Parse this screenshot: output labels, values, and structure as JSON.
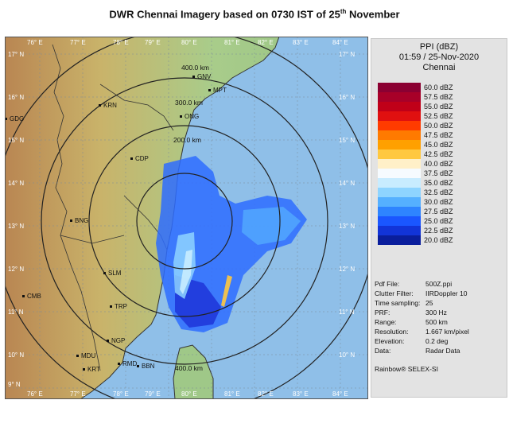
{
  "title": {
    "prefix": "DWR Chennai Imagery based on 0730 IST of 25",
    "sup": "th",
    "suffix": " November"
  },
  "colors": {
    "sea": "#8fbfe8",
    "land_low": "#9fc888",
    "land_mid": "#c9b36a",
    "land_high": "#b98652",
    "range_ring": "#222222",
    "coast": "#222222",
    "echo_dark": "#1b2fd6",
    "echo_light": "#e9f3ff"
  },
  "map": {
    "lon_labels": [
      "76° E",
      "77° E",
      "78° E",
      "79° E",
      "80° E",
      "81° E",
      "82° E",
      "83° E",
      "84° E"
    ],
    "lat_labels": [
      "17° N",
      "16° N",
      "15° N",
      "14° N",
      "13° N",
      "12° N",
      "11° N",
      "10° N",
      "9° N"
    ],
    "ring_labels": [
      "400.0 km",
      "300.0 km",
      "200.0 km",
      "400.0 km"
    ],
    "stations": [
      "GNV",
      "MPT",
      "ONG",
      "KRN",
      "GDG",
      "CDP",
      "BNG",
      "SLM",
      "CMB",
      "TRP",
      "NGP",
      "MDU",
      "RMD",
      "BBN",
      "KRT"
    ]
  },
  "panel": {
    "product": "PPI (dBZ)",
    "time": "01:59 / 25-Nov-2020",
    "site": "Chennai",
    "legend": [
      {
        "label": "60.0 dBZ",
        "color": "#8b0032"
      },
      {
        "label": "57.5 dBZ",
        "color": "#a80028"
      },
      {
        "label": "55.0 dBZ",
        "color": "#c00018"
      },
      {
        "label": "52.5 dBZ",
        "color": "#e01010"
      },
      {
        "label": "50.0 dBZ",
        "color": "#ff3b00"
      },
      {
        "label": "47.5 dBZ",
        "color": "#ff7a00"
      },
      {
        "label": "45.0 dBZ",
        "color": "#ffa000"
      },
      {
        "label": "42.5 dBZ",
        "color": "#ffc840"
      },
      {
        "label": "40.0 dBZ",
        "color": "#fff0c8"
      },
      {
        "label": "37.5 dBZ",
        "color": "#f6fbff"
      },
      {
        "label": "35.0 dBZ",
        "color": "#c8ecff"
      },
      {
        "label": "32.5 dBZ",
        "color": "#8ed4ff"
      },
      {
        "label": "30.0 dBZ",
        "color": "#55b0ff"
      },
      {
        "label": "27.5 dBZ",
        "color": "#2e84ff"
      },
      {
        "label": "25.0 dBZ",
        "color": "#1a56ff"
      },
      {
        "label": "22.5 dBZ",
        "color": "#1234d8"
      },
      {
        "label": "20.0 dBZ",
        "color": "#0a1e9c"
      }
    ],
    "meta": [
      {
        "key": "Pdf File:",
        "value": "500Z.ppi"
      },
      {
        "key": "Clutter Filter:",
        "value": "IIRDoppler 10"
      },
      {
        "key": "Time sampling:",
        "value": "25"
      },
      {
        "key": "PRF:",
        "value": "300 Hz"
      },
      {
        "key": "Range:",
        "value": "500 km"
      },
      {
        "key": "Resolution:",
        "value": "1.667 km/pixel"
      },
      {
        "key": "Elevation:",
        "value": "0.2 deg"
      },
      {
        "key": "Data:",
        "value": "Radar Data"
      }
    ],
    "brand": "Rainbow® SELEX-SI"
  }
}
